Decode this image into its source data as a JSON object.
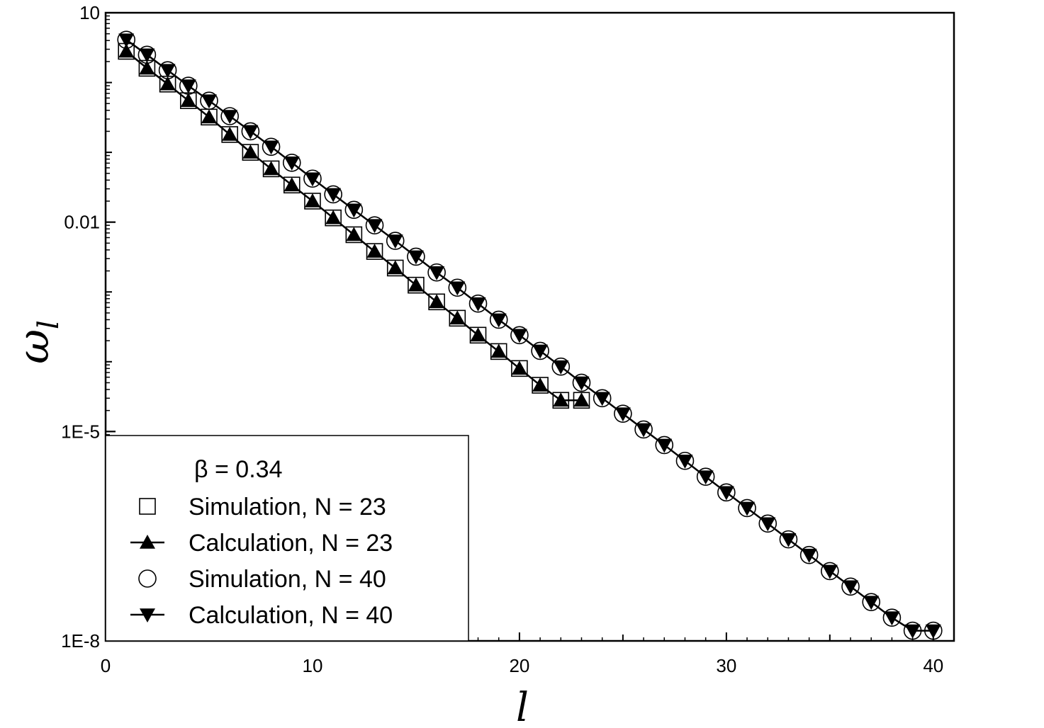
{
  "chart_data": {
    "type": "scatter",
    "xlabel": "l",
    "ylabel": "ω",
    "ylabel_subscript": "l",
    "xlim": [
      0,
      41
    ],
    "ylim": [
      1e-08,
      10
    ],
    "yscale": "log",
    "x_ticks": [
      0,
      10,
      20,
      30,
      40
    ],
    "x_tick_labels": [
      "0",
      "10",
      "20",
      "30",
      "40"
    ],
    "y_ticks": [
      10,
      0.01,
      1e-05,
      1e-08
    ],
    "y_tick_labels": [
      "10",
      "0.01",
      "1E-5",
      "1E-8"
    ],
    "grid": false,
    "legend_position": "bottom-left",
    "legend_title": "β = 0.34",
    "series": [
      {
        "name": "Simulation, N = 23",
        "marker": "square-open",
        "line": false,
        "x": [
          1,
          2,
          3,
          4,
          5,
          6,
          7,
          8,
          9,
          10,
          11,
          12,
          13,
          14,
          15,
          16,
          17,
          18,
          19,
          20,
          21,
          22,
          23
        ],
        "y": [
          2.8,
          1.6,
          0.95,
          0.55,
          0.32,
          0.18,
          0.1,
          0.058,
          0.034,
          0.02,
          0.0115,
          0.0066,
          0.0038,
          0.0022,
          0.00125,
          0.00072,
          0.00042,
          0.00024,
          0.00014,
          8e-05,
          4.6e-05,
          2.8e-05,
          2.8e-05
        ]
      },
      {
        "name": "Calculation, N = 23",
        "marker": "triangle-up-filled",
        "line": true,
        "x": [
          1,
          2,
          3,
          4,
          5,
          6,
          7,
          8,
          9,
          10,
          11,
          12,
          13,
          14,
          15,
          16,
          17,
          18,
          19,
          20,
          21,
          22,
          23
        ],
        "y": [
          2.8,
          1.6,
          0.95,
          0.55,
          0.32,
          0.18,
          0.1,
          0.058,
          0.034,
          0.02,
          0.0115,
          0.0066,
          0.0038,
          0.0022,
          0.00125,
          0.00072,
          0.00042,
          0.00024,
          0.00014,
          8e-05,
          4.6e-05,
          2.8e-05,
          2.8e-05
        ]
      },
      {
        "name": "Simulation, N = 40",
        "marker": "circle-open",
        "line": false,
        "x": [
          1,
          2,
          3,
          4,
          5,
          6,
          7,
          8,
          9,
          10,
          11,
          12,
          13,
          14,
          15,
          16,
          17,
          18,
          19,
          20,
          21,
          22,
          23,
          24,
          25,
          26,
          27,
          28,
          29,
          30,
          31,
          32,
          33,
          34,
          35,
          36,
          37,
          38,
          39,
          40
        ],
        "y": [
          4.1,
          2.5,
          1.5,
          0.9,
          0.55,
          0.33,
          0.2,
          0.12,
          0.071,
          0.042,
          0.025,
          0.015,
          0.009,
          0.0054,
          0.0032,
          0.0019,
          0.00115,
          0.00068,
          0.0004,
          0.00024,
          0.000143,
          8.5e-05,
          5e-05,
          3e-05,
          1.8e-05,
          1.07e-05,
          6.4e-06,
          3.8e-06,
          2.25e-06,
          1.34e-06,
          8e-07,
          4.8e-07,
          2.85e-07,
          1.7e-07,
          1e-07,
          6e-08,
          3.6e-08,
          2.15e-08,
          1.4e-08,
          1.4e-08
        ]
      },
      {
        "name": "Calculation, N = 40",
        "marker": "triangle-down-filled",
        "line": true,
        "x": [
          1,
          2,
          3,
          4,
          5,
          6,
          7,
          8,
          9,
          10,
          11,
          12,
          13,
          14,
          15,
          16,
          17,
          18,
          19,
          20,
          21,
          22,
          23,
          24,
          25,
          26,
          27,
          28,
          29,
          30,
          31,
          32,
          33,
          34,
          35,
          36,
          37,
          38,
          39,
          40
        ],
        "y": [
          4.1,
          2.5,
          1.5,
          0.9,
          0.55,
          0.33,
          0.2,
          0.12,
          0.071,
          0.042,
          0.025,
          0.015,
          0.009,
          0.0054,
          0.0032,
          0.0019,
          0.00115,
          0.00068,
          0.0004,
          0.00024,
          0.000143,
          8.5e-05,
          5e-05,
          3e-05,
          1.8e-05,
          1.07e-05,
          6.4e-06,
          3.8e-06,
          2.25e-06,
          1.34e-06,
          8e-07,
          4.8e-07,
          2.85e-07,
          1.7e-07,
          1e-07,
          6e-08,
          3.6e-08,
          2.15e-08,
          1.4e-08,
          1.4e-08
        ]
      }
    ]
  }
}
